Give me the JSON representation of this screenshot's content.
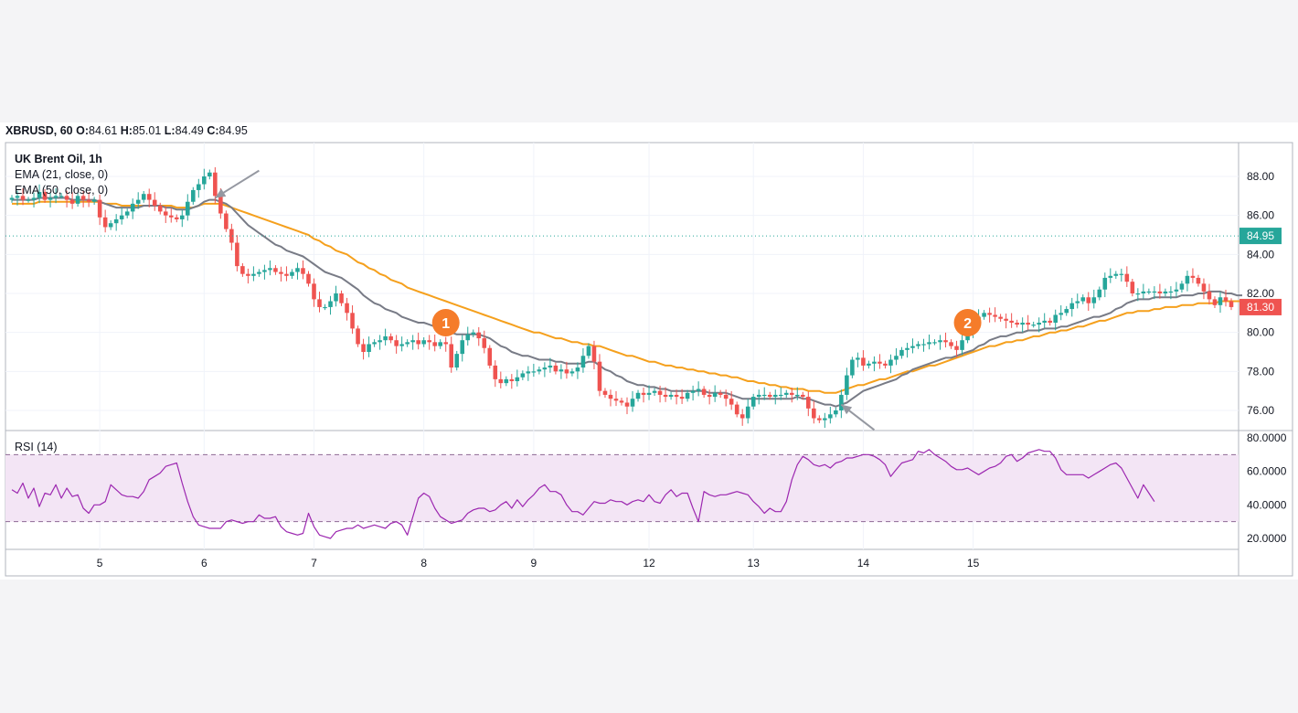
{
  "header": {
    "symbol_line": "XBRUSD, 60",
    "o_label": "O:",
    "o_value": "84.61",
    "h_label": "H:",
    "h_value": "85.01",
    "l_label": "L:",
    "l_value": "84.49",
    "c_label": "C:",
    "c_value": "84.95"
  },
  "legend": {
    "title": "UK Brent Oil, 1h",
    "ema21": "EMA (21, close, 0)",
    "ema50": "EMA (50, close, 0)"
  },
  "rsi": {
    "label": "RSI (14)"
  },
  "colors": {
    "up": "#26a69a",
    "down": "#ef5350",
    "ema21": "#787b86",
    "ema50": "#f5a01d",
    "rsi": "#9c27b0",
    "rsi_band": "#f3e5f5",
    "marker": "#f57c2a",
    "last_price_tag": "#26a69a",
    "current_price_tag": "#ef5350",
    "arrow": "#9598a1"
  },
  "chart_data": [
    {
      "type": "candlestick",
      "title": "UK Brent Oil, 1h",
      "ylim": [
        75,
        89.5
      ],
      "y_ticks": [
        "88.00",
        "86.00",
        "84.00",
        "82.00",
        "80.00",
        "78.00",
        "76.00"
      ],
      "x_ticks": [
        "5",
        "6",
        "7",
        "8",
        "9",
        "12",
        "13",
        "14",
        "15"
      ],
      "price_tags": {
        "last": "84.95",
        "current": "81.30"
      },
      "closes": [
        86.9,
        87.0,
        86.8,
        86.8,
        86.9,
        87.2,
        86.8,
        86.9,
        87.0,
        87.0,
        86.8,
        86.6,
        87.0,
        86.8,
        86.7,
        86.8,
        85.9,
        85.4,
        85.6,
        85.8,
        86.0,
        86.2,
        86.6,
        86.8,
        87.1,
        86.8,
        86.5,
        86.2,
        86.0,
        85.9,
        85.8,
        86.0,
        86.7,
        87.3,
        87.6,
        88.0,
        88.2,
        87.0,
        86.1,
        85.3,
        84.6,
        83.4,
        83.0,
        82.9,
        83.0,
        83.1,
        83.2,
        83.3,
        83.1,
        83.0,
        82.9,
        83.1,
        83.3,
        83.0,
        82.5,
        81.7,
        81.3,
        81.3,
        81.6,
        82.0,
        81.5,
        81.0,
        80.2,
        79.4,
        79.0,
        79.4,
        79.5,
        79.6,
        79.8,
        79.6,
        79.3,
        79.4,
        79.5,
        79.6,
        79.4,
        79.6,
        79.5,
        79.3,
        79.5,
        79.4,
        78.2,
        78.9,
        79.6,
        79.9,
        80.0,
        79.7,
        79.2,
        78.3,
        77.6,
        77.4,
        77.6,
        77.5,
        77.7,
        77.9,
        78.0,
        78.0,
        78.1,
        78.2,
        78.3,
        78.0,
        78.1,
        77.9,
        78.0,
        78.2,
        78.8,
        79.3,
        78.5,
        77.0,
        76.8,
        76.6,
        76.5,
        76.4,
        76.2,
        76.6,
        76.9,
        76.8,
        76.9,
        77.0,
        76.8,
        76.7,
        76.8,
        76.7,
        76.6,
        76.9,
        77.0,
        77.1,
        76.8,
        76.7,
        76.9,
        76.8,
        76.6,
        76.3,
        75.8,
        75.6,
        76.2,
        76.7,
        76.8,
        76.8,
        76.7,
        76.8,
        76.8,
        76.9,
        76.8,
        76.8,
        76.7,
        76.1,
        75.6,
        75.5,
        75.6,
        75.8,
        76.0,
        76.8,
        77.8,
        78.6,
        78.7,
        78.3,
        78.4,
        78.5,
        78.4,
        78.3,
        78.6,
        78.8,
        79.1,
        79.2,
        79.3,
        79.4,
        79.4,
        79.5,
        79.5,
        79.6,
        79.5,
        79.3,
        79.1,
        79.6,
        80.1,
        80.5,
        80.8,
        81.0,
        80.9,
        80.8,
        80.7,
        80.6,
        80.5,
        80.4,
        80.5,
        80.4,
        80.4,
        80.5,
        80.6,
        80.5,
        80.9,
        81.0,
        81.2,
        81.5,
        81.6,
        81.8,
        81.5,
        81.8,
        82.2,
        82.8,
        82.9,
        83.0,
        83.0,
        82.6,
        82.0,
        82.0,
        82.1,
        82.1,
        82.1,
        82.0,
        82.1,
        82.1,
        82.2,
        82.5,
        82.9,
        82.8,
        82.5,
        82.1,
        81.7,
        81.4,
        81.8,
        81.6,
        81.3
      ],
      "ema21": [
        86.8,
        86.8,
        86.8,
        86.8,
        86.8,
        86.9,
        86.9,
        86.9,
        86.9,
        86.9,
        86.9,
        86.8,
        86.8,
        86.8,
        86.8,
        86.8,
        86.7,
        86.6,
        86.5,
        86.4,
        86.4,
        86.4,
        86.4,
        86.4,
        86.5,
        86.5,
        86.5,
        86.5,
        86.4,
        86.4,
        86.3,
        86.3,
        86.3,
        86.4,
        86.5,
        86.7,
        86.8,
        86.8,
        86.7,
        86.6,
        86.4,
        86.1,
        85.8,
        85.5,
        85.3,
        85.1,
        84.9,
        84.7,
        84.5,
        84.4,
        84.2,
        84.1,
        84.0,
        83.9,
        83.7,
        83.5,
        83.3,
        83.1,
        83.0,
        82.9,
        82.8,
        82.6,
        82.4,
        82.2,
        81.9,
        81.7,
        81.5,
        81.4,
        81.2,
        81.1,
        81.0,
        80.8,
        80.7,
        80.6,
        80.5,
        80.5,
        80.4,
        80.3,
        80.2,
        80.2,
        80.0,
        79.9,
        79.9,
        79.9,
        79.9,
        79.9,
        79.8,
        79.7,
        79.5,
        79.3,
        79.2,
        79.0,
        78.9,
        78.8,
        78.8,
        78.7,
        78.6,
        78.6,
        78.6,
        78.5,
        78.5,
        78.4,
        78.4,
        78.4,
        78.4,
        78.5,
        78.5,
        78.3,
        78.1,
        78.0,
        77.8,
        77.7,
        77.5,
        77.4,
        77.3,
        77.3,
        77.2,
        77.2,
        77.1,
        77.1,
        77.0,
        77.0,
        77.0,
        77.0,
        77.0,
        77.0,
        77.0,
        76.9,
        76.9,
        76.9,
        76.9,
        76.8,
        76.7,
        76.6,
        76.6,
        76.6,
        76.6,
        76.6,
        76.6,
        76.6,
        76.6,
        76.6,
        76.6,
        76.7,
        76.6,
        76.6,
        76.5,
        76.4,
        76.3,
        76.3,
        76.2,
        76.3,
        76.4,
        76.6,
        76.8,
        77.0,
        77.1,
        77.2,
        77.3,
        77.4,
        77.5,
        77.6,
        77.8,
        77.9,
        78.1,
        78.2,
        78.3,
        78.4,
        78.5,
        78.6,
        78.7,
        78.7,
        78.8,
        78.9,
        79.0,
        79.1,
        79.3,
        79.4,
        79.6,
        79.7,
        79.8,
        79.8,
        79.9,
        80.0,
        80.0,
        80.1,
        80.1,
        80.1,
        80.2,
        80.2,
        80.2,
        80.3,
        80.3,
        80.4,
        80.5,
        80.6,
        80.7,
        80.8,
        80.8,
        80.9,
        81.0,
        81.2,
        81.3,
        81.5,
        81.6,
        81.7,
        81.7,
        81.7,
        81.8,
        81.8,
        81.8,
        81.8,
        81.8,
        81.9,
        81.9,
        81.9,
        82.0,
        82.0,
        82.1,
        82.1,
        82.1,
        82.0,
        82.0,
        81.9,
        81.9
      ],
      "ema50": [
        86.6,
        86.6,
        86.6,
        86.6,
        86.6,
        86.7,
        86.7,
        86.7,
        86.7,
        86.7,
        86.7,
        86.7,
        86.7,
        86.7,
        86.7,
        86.7,
        86.7,
        86.6,
        86.6,
        86.6,
        86.5,
        86.5,
        86.5,
        86.5,
        86.5,
        86.5,
        86.5,
        86.5,
        86.5,
        86.5,
        86.4,
        86.4,
        86.4,
        86.4,
        86.5,
        86.6,
        86.6,
        86.6,
        86.6,
        86.5,
        86.4,
        86.3,
        86.2,
        86.1,
        86.0,
        85.9,
        85.8,
        85.7,
        85.6,
        85.5,
        85.4,
        85.3,
        85.2,
        85.1,
        85.0,
        84.8,
        84.7,
        84.5,
        84.4,
        84.2,
        84.1,
        84.0,
        83.8,
        83.6,
        83.5,
        83.3,
        83.2,
        83.0,
        82.9,
        82.7,
        82.6,
        82.5,
        82.3,
        82.2,
        82.1,
        82.0,
        81.9,
        81.8,
        81.7,
        81.6,
        81.5,
        81.4,
        81.3,
        81.2,
        81.1,
        81.0,
        80.9,
        80.8,
        80.7,
        80.6,
        80.5,
        80.4,
        80.3,
        80.2,
        80.1,
        80.0,
        80.0,
        79.9,
        79.8,
        79.7,
        79.7,
        79.6,
        79.5,
        79.5,
        79.4,
        79.4,
        79.3,
        79.3,
        79.2,
        79.1,
        79.0,
        78.9,
        78.8,
        78.8,
        78.7,
        78.6,
        78.5,
        78.5,
        78.4,
        78.3,
        78.3,
        78.2,
        78.2,
        78.1,
        78.1,
        78.0,
        78.0,
        77.9,
        77.9,
        77.8,
        77.8,
        77.7,
        77.7,
        77.6,
        77.5,
        77.5,
        77.4,
        77.4,
        77.3,
        77.3,
        77.2,
        77.2,
        77.1,
        77.1,
        77.1,
        77.0,
        77.0,
        77.0,
        76.9,
        76.9,
        76.9,
        77.0,
        77.1,
        77.2,
        77.3,
        77.3,
        77.4,
        77.5,
        77.6,
        77.6,
        77.7,
        77.8,
        77.9,
        78.0,
        78.0,
        78.1,
        78.2,
        78.3,
        78.3,
        78.4,
        78.5,
        78.6,
        78.7,
        78.8,
        78.9,
        79.0,
        79.1,
        79.2,
        79.3,
        79.3,
        79.4,
        79.5,
        79.5,
        79.6,
        79.6,
        79.7,
        79.8,
        79.8,
        79.9,
        80.0,
        80.0,
        80.1,
        80.1,
        80.2,
        80.3,
        80.3,
        80.4,
        80.5,
        80.6,
        80.6,
        80.7,
        80.8,
        80.9,
        81.0,
        81.0,
        81.1,
        81.1,
        81.1,
        81.2,
        81.2,
        81.3,
        81.3,
        81.3,
        81.4,
        81.4,
        81.4,
        81.5,
        81.5,
        81.5,
        81.5,
        81.6,
        81.6,
        81.6,
        81.6,
        81.6
      ],
      "markers": [
        {
          "label": "1",
          "bar": 79,
          "price": 80.5
        },
        {
          "label": "2",
          "bar": 174,
          "price": 80.5
        }
      ],
      "arrows": [
        {
          "from_bar": 45,
          "from_price": 88.3,
          "to_bar": 37,
          "to_price": 86.9
        },
        {
          "from_bar": 157,
          "from_price": 75.0,
          "to_bar": 151,
          "to_price": 76.3
        }
      ]
    },
    {
      "type": "line",
      "title": "RSI (14)",
      "ylim": [
        15,
        82
      ],
      "y_ticks": [
        "80.0000",
        "60.0000",
        "40.0000",
        "20.0000"
      ],
      "band": [
        30,
        70
      ],
      "values": [
        49,
        47,
        53,
        44,
        50,
        39,
        47,
        46,
        52,
        44,
        50,
        45,
        46,
        38,
        35,
        40,
        40,
        42,
        52,
        49,
        46,
        45,
        45,
        44,
        48,
        55,
        57,
        59,
        63,
        64,
        65,
        53,
        42,
        33,
        28,
        27,
        26,
        26,
        26,
        30,
        31,
        30,
        29,
        30,
        30,
        34,
        32,
        32,
        33,
        27,
        24,
        23,
        22,
        23,
        35,
        27,
        22,
        21,
        20,
        24,
        25,
        26,
        26,
        28,
        26,
        27,
        28,
        27,
        26,
        29,
        30,
        28,
        22,
        33,
        44,
        47,
        45,
        38,
        33,
        31,
        29,
        30,
        31,
        35,
        37,
        38,
        38,
        36,
        37,
        40,
        42,
        38,
        43,
        39,
        43,
        46,
        50,
        52,
        48,
        48,
        46,
        40,
        36,
        36,
        34,
        38,
        42,
        41,
        41,
        43,
        42,
        42,
        40,
        42,
        43,
        42,
        46,
        42,
        41,
        46,
        49,
        45,
        47,
        47,
        38,
        30,
        48,
        46,
        45,
        46,
        46,
        47,
        48,
        47,
        46,
        42,
        39,
        35,
        38,
        36,
        36,
        42,
        55,
        64,
        69,
        67,
        64,
        63,
        64,
        62,
        65,
        66,
        68,
        68,
        69,
        70,
        70,
        69,
        67,
        64,
        57,
        61,
        65,
        66,
        67,
        72,
        71,
        73,
        70,
        68,
        66,
        63,
        61,
        61,
        62,
        60,
        58,
        60,
        62,
        63,
        65,
        69,
        70,
        66,
        68,
        71,
        72,
        73,
        72,
        72,
        68,
        61,
        58,
        58,
        58,
        58,
        56,
        58,
        60,
        62,
        64,
        65,
        62,
        56,
        50,
        44,
        52,
        47,
        42
      ]
    }
  ]
}
